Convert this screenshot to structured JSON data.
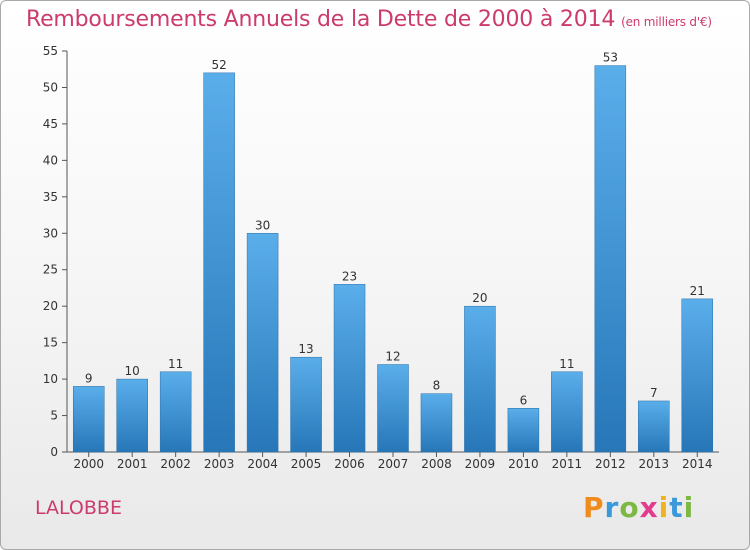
{
  "header": {
    "title": "Remboursements Annuels de la Dette de 2000 à 2014",
    "subtitle": "(en milliers d'€)"
  },
  "footer": {
    "commune": "LALOBBE",
    "brand": "Proxiti"
  },
  "colors": {
    "accent": "#cc3b6e",
    "bar_light": "#5aaeea",
    "bar_dark": "#2777b8"
  },
  "chart_data": {
    "type": "bar",
    "title": "Remboursements Annuels de la Dette de 2000 à 2014",
    "xlabel": "",
    "ylabel": "",
    "categories": [
      "2000",
      "2001",
      "2002",
      "2003",
      "2004",
      "2005",
      "2006",
      "2007",
      "2008",
      "2009",
      "2010",
      "2011",
      "2012",
      "2013",
      "2014"
    ],
    "values": [
      9,
      10,
      11,
      52,
      30,
      13,
      23,
      12,
      8,
      20,
      6,
      11,
      53,
      7,
      21
    ],
    "ylim": [
      0,
      55
    ],
    "yticks": [
      0,
      5,
      10,
      15,
      20,
      25,
      30,
      35,
      40,
      45,
      50,
      55
    ],
    "grid": false,
    "legend": "none"
  }
}
